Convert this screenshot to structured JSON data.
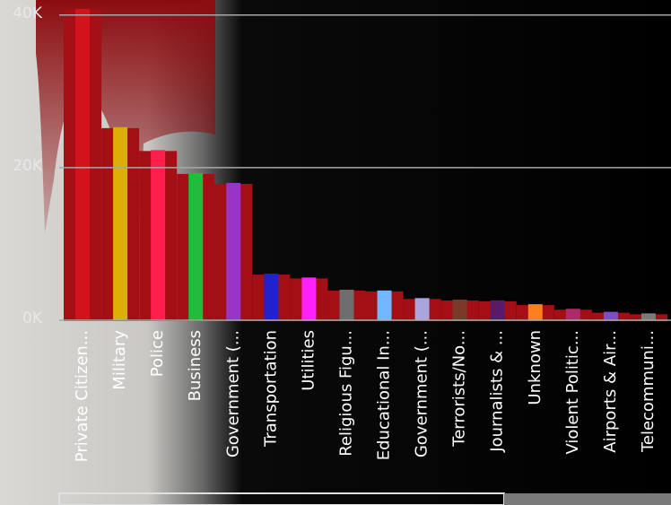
{
  "chart_data": {
    "type": "bar",
    "categories": [
      "Private Citizen...",
      "Military",
      "Police",
      "Business",
      "Government (...",
      "Transportation",
      "Utilities",
      "Religious Figu...",
      "Educational In...",
      "Government (...",
      "Terrorists/No...",
      "Journalists & ...",
      "Unknown",
      "Violent Politic...",
      "Airports & Air...",
      "Telecommuni..."
    ],
    "values": [
      40800,
      25300,
      22300,
      19300,
      18000,
      6100,
      5600,
      4000,
      3900,
      2900,
      2700,
      2600,
      2100,
      1500,
      1100,
      900
    ],
    "colors": [
      "#d3131b",
      "#dcae08",
      "#ff1f4f",
      "#20bd3c",
      "#9a34c6",
      "#2222cc",
      "#ff22ff",
      "#6e6e6e",
      "#70b8ff",
      "#aaa5dc",
      "#7a3a2a",
      "#5a1a6a",
      "#ff7f1f",
      "#b02a6a",
      "#7a50c0",
      "#7a7a7a"
    ],
    "area_color": "#a30f14",
    "ylim": [
      0,
      40800
    ],
    "yticks": [
      {
        "value": 0,
        "label": "0K"
      },
      {
        "value": 20000,
        "label": "20K"
      },
      {
        "value": 40000,
        "label": "40K"
      }
    ],
    "grid": true
  }
}
